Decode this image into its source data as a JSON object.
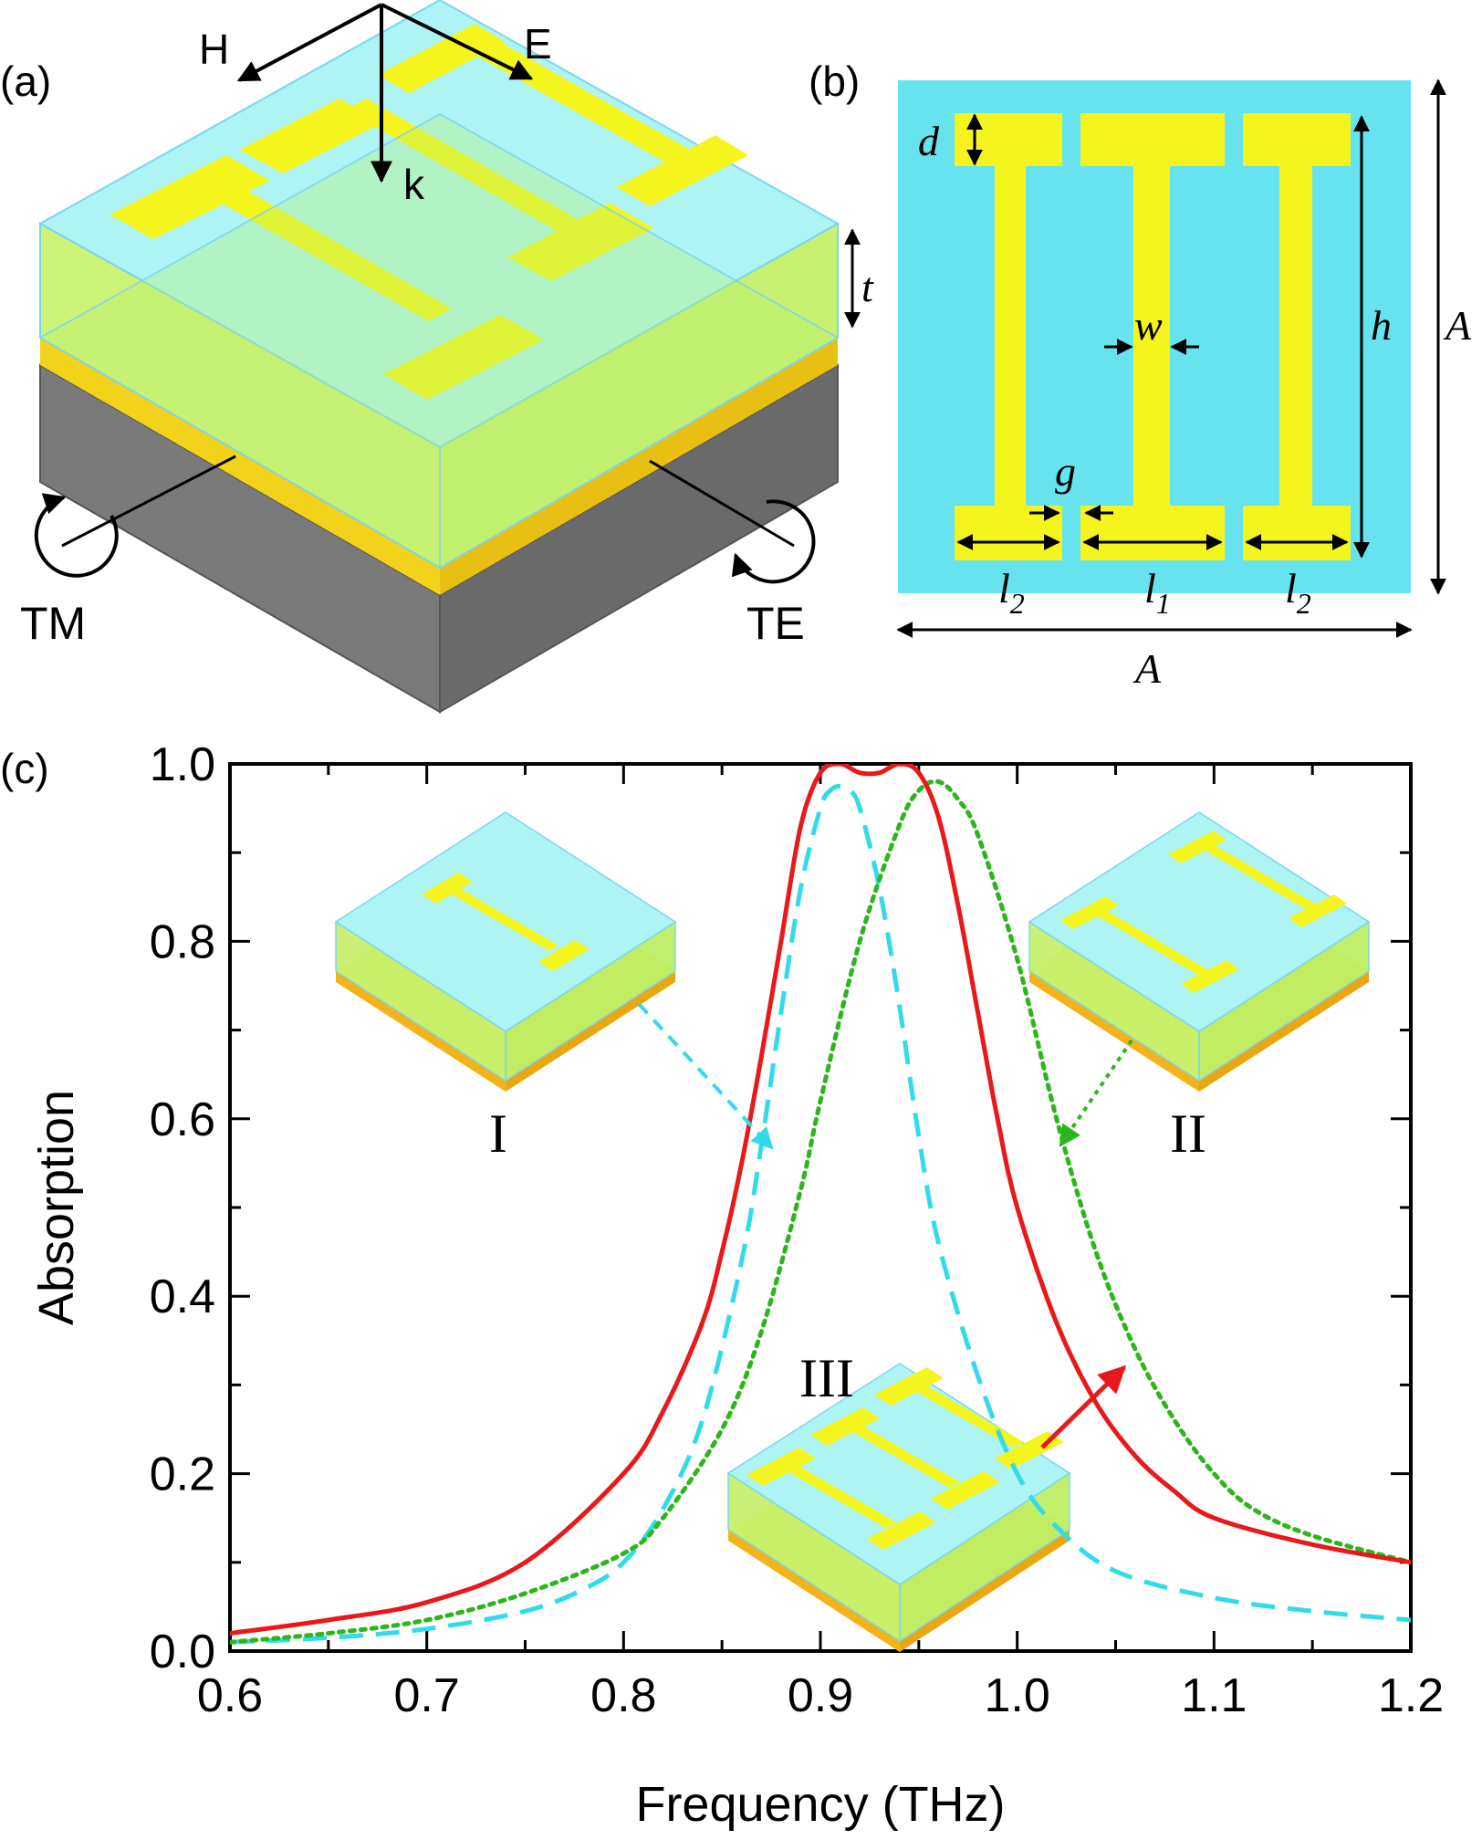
{
  "panels": {
    "a": {
      "label": "(a)",
      "axes": {
        "h": "H",
        "e": "E",
        "k": "k"
      },
      "thickness": "t",
      "modes": {
        "tm": "TM",
        "te": "TE"
      }
    },
    "b": {
      "label": "(b)",
      "dims": {
        "d": "d",
        "w": "w",
        "h": "h",
        "g": "g",
        "a_right": "A",
        "a_bottom": "A",
        "l2_left": "l",
        "l2_left_sub": "2",
        "l1": "l",
        "l1_sub": "1",
        "l2_right": "l",
        "l2_right_sub": "2"
      }
    },
    "c": {
      "label": "(c)",
      "insets": {
        "i": "I",
        "ii": "II",
        "iii": "III"
      }
    }
  },
  "colors": {
    "substrate_cyan": "#66e3ee",
    "resonator_yellow": "#f5f51e",
    "ground_gray": "#7b7b7b",
    "curve_i": "#33dbe8",
    "curve_ii": "#2db51c",
    "curve_iii": "#e8191a"
  },
  "chart_data": {
    "type": "line",
    "xlabel": "Frequency (THz)",
    "ylabel": "Absorption",
    "xlim": [
      0.6,
      1.2
    ],
    "ylim": [
      0.0,
      1.0
    ],
    "xticks": [
      "0.6",
      "0.7",
      "0.8",
      "0.9",
      "1.0",
      "1.1",
      "1.2"
    ],
    "yticks": [
      "0.0",
      "0.2",
      "0.4",
      "0.6",
      "0.8",
      "1.0"
    ],
    "grid": false,
    "series": [
      {
        "name": "I",
        "style": "dashed",
        "color": "#33dbe8",
        "x": [
          0.6,
          0.65,
          0.7,
          0.75,
          0.78,
          0.8,
          0.82,
          0.84,
          0.86,
          0.87,
          0.88,
          0.89,
          0.9,
          0.905,
          0.91,
          0.915,
          0.92,
          0.93,
          0.94,
          0.95,
          0.96,
          0.98,
          1.0,
          1.02,
          1.05,
          1.1,
          1.15,
          1.2
        ],
        "y": [
          0.01,
          0.015,
          0.025,
          0.045,
          0.07,
          0.1,
          0.16,
          0.26,
          0.44,
          0.57,
          0.72,
          0.86,
          0.95,
          0.97,
          0.975,
          0.97,
          0.95,
          0.86,
          0.73,
          0.58,
          0.46,
          0.31,
          0.2,
          0.14,
          0.09,
          0.06,
          0.045,
          0.035
        ]
      },
      {
        "name": "II",
        "style": "dotted",
        "color": "#2db51c",
        "x": [
          0.6,
          0.65,
          0.7,
          0.75,
          0.8,
          0.82,
          0.85,
          0.87,
          0.89,
          0.9,
          0.92,
          0.94,
          0.95,
          0.96,
          0.97,
          0.98,
          1.0,
          1.02,
          1.04,
          1.06,
          1.08,
          1.1,
          1.12,
          1.15,
          1.2
        ],
        "y": [
          0.01,
          0.02,
          0.035,
          0.065,
          0.11,
          0.15,
          0.25,
          0.36,
          0.52,
          0.62,
          0.8,
          0.93,
          0.97,
          0.98,
          0.96,
          0.92,
          0.78,
          0.6,
          0.45,
          0.34,
          0.26,
          0.2,
          0.16,
          0.13,
          0.1
        ]
      },
      {
        "name": "III",
        "style": "solid",
        "color": "#e8191a",
        "x": [
          0.6,
          0.65,
          0.7,
          0.75,
          0.8,
          0.82,
          0.84,
          0.85,
          0.86,
          0.87,
          0.88,
          0.89,
          0.9,
          0.91,
          0.92,
          0.93,
          0.94,
          0.95,
          0.96,
          0.97,
          0.98,
          0.99,
          1.0,
          1.02,
          1.04,
          1.06,
          1.08,
          1.1,
          1.15,
          1.2
        ],
        "y": [
          0.02,
          0.035,
          0.055,
          0.1,
          0.2,
          0.27,
          0.37,
          0.45,
          0.55,
          0.67,
          0.8,
          0.93,
          0.99,
          1.0,
          0.99,
          0.99,
          1.0,
          0.99,
          0.94,
          0.84,
          0.72,
          0.6,
          0.5,
          0.37,
          0.28,
          0.22,
          0.18,
          0.15,
          0.12,
          0.1
        ]
      }
    ]
  }
}
